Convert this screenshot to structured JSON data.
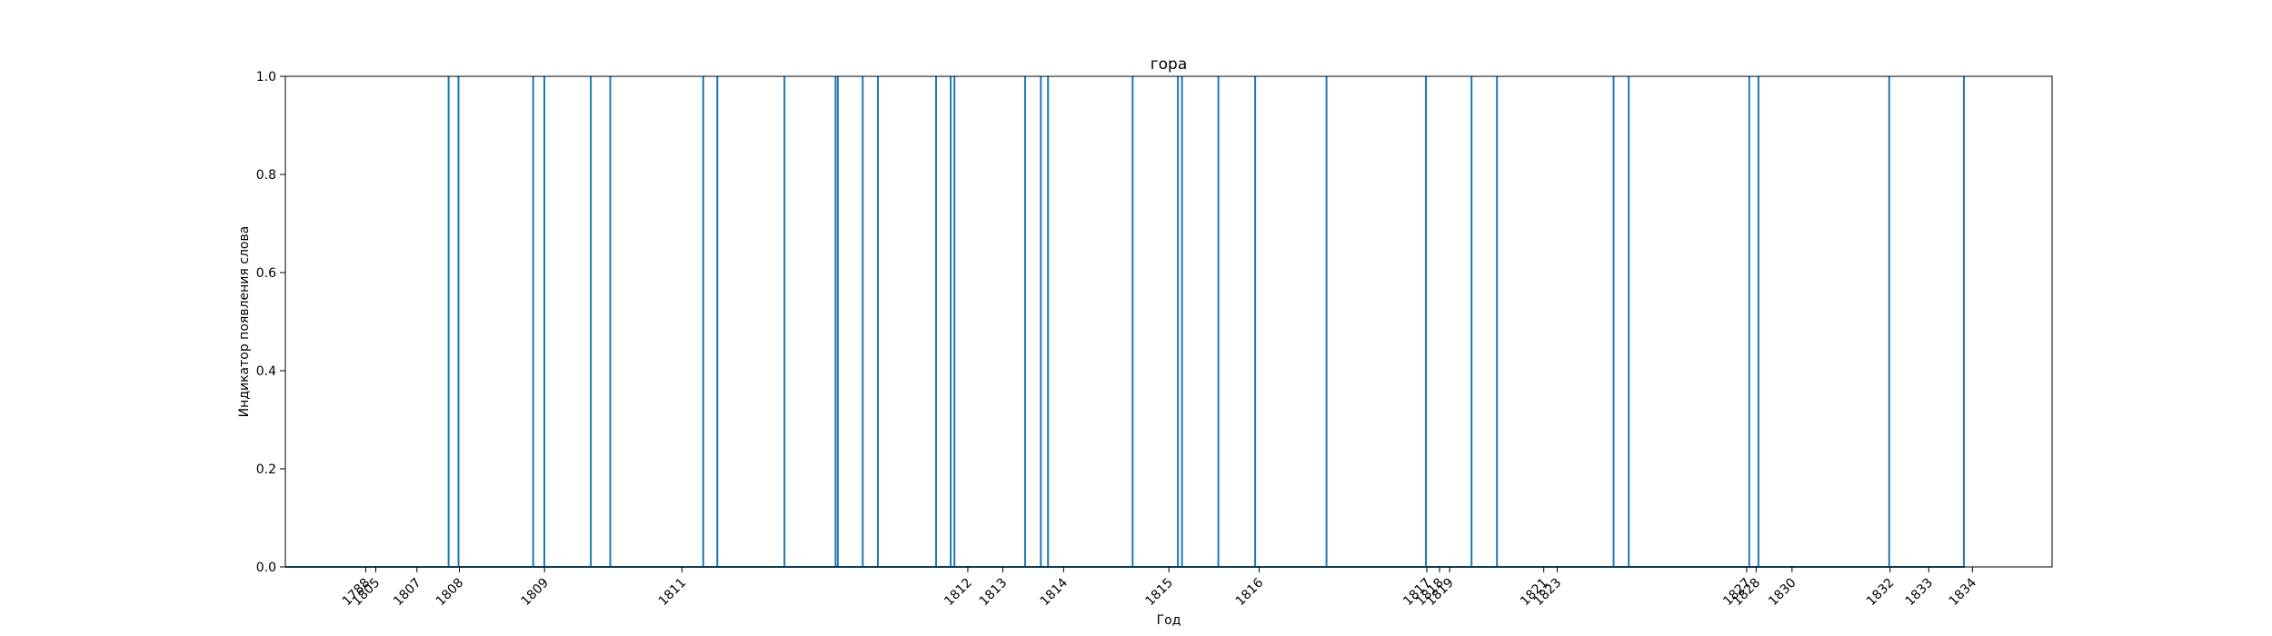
{
  "chart_data": {
    "type": "line",
    "title": "гора",
    "xlabel": "Год",
    "ylabel": "Индикатор появления слова",
    "ylim": [
      0,
      1
    ],
    "y_ticks": [
      "0.0",
      "0.2",
      "0.4",
      "0.6",
      "0.8",
      "1.0"
    ],
    "x_tick_labels": [
      "1788",
      "1805",
      "1807",
      "1808",
      "1809",
      "1811",
      "1812",
      "1813",
      "1814",
      "1815",
      "1816",
      "1817",
      "1818",
      "1819",
      "1821",
      "1823",
      "1827",
      "1828",
      "1830",
      "1832",
      "1833",
      "1834"
    ],
    "series": [
      {
        "color": "#1f77b4",
        "occurrence_positions": [
          0.0924,
          0.098,
          0.1403,
          0.1466,
          0.1729,
          0.1839,
          0.2365,
          0.2445,
          0.2825,
          0.3114,
          0.3127,
          0.3268,
          0.3354,
          0.3683,
          0.3766,
          0.3787,
          0.4187,
          0.4276,
          0.4317,
          0.4796,
          0.5052,
          0.5075,
          0.5281,
          0.5489,
          0.5893,
          0.6456,
          0.6714,
          0.6858,
          0.7518,
          0.7604,
          0.8286,
          0.8338,
          0.9078,
          0.9501
        ]
      }
    ]
  }
}
